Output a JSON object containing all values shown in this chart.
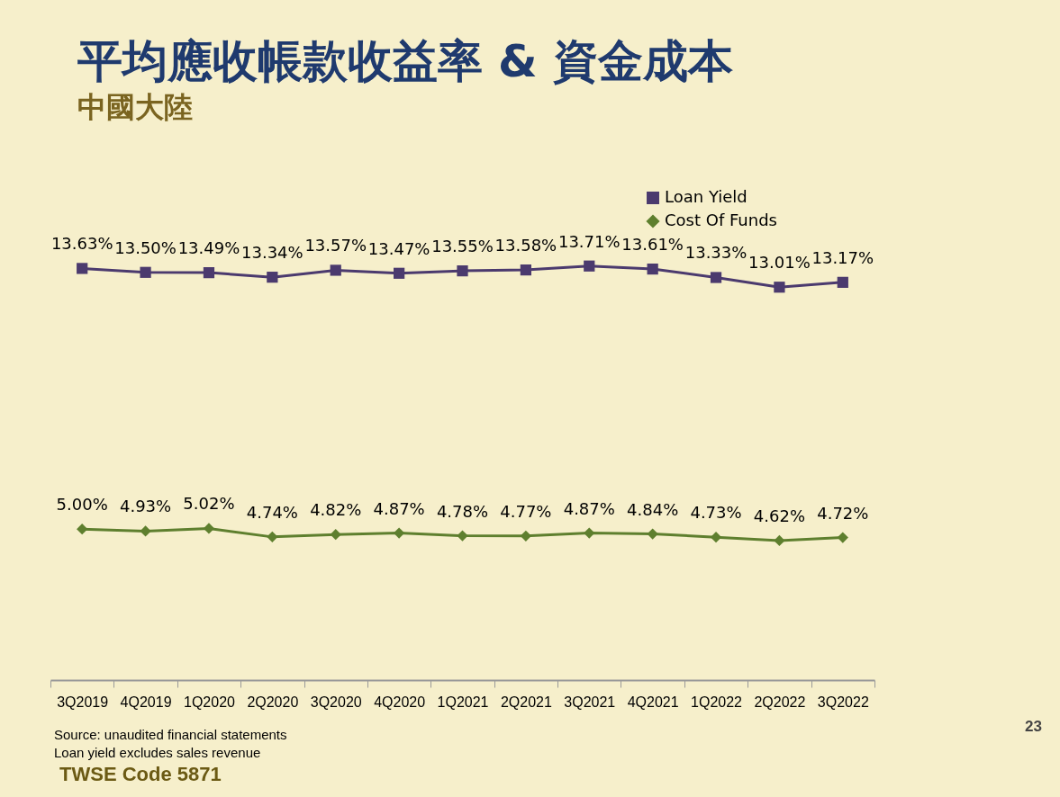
{
  "chart_data": {
    "type": "line",
    "title": "平均應收帳款收益率 & 資金成本",
    "subtitle": "中國大陸",
    "categories": [
      "3Q2019",
      "4Q2019",
      "1Q2020",
      "2Q2020",
      "3Q2020",
      "4Q2020",
      "1Q2021",
      "2Q2021",
      "3Q2021",
      "4Q2021",
      "1Q2022",
      "2Q2022",
      "3Q2022"
    ],
    "series": [
      {
        "name": "Loan Yield",
        "color": "#4b3a6e",
        "marker": "square",
        "values": [
          13.63,
          13.5,
          13.49,
          13.34,
          13.57,
          13.47,
          13.55,
          13.58,
          13.71,
          13.61,
          13.33,
          13.01,
          13.17
        ],
        "value_labels": [
          "13.63%",
          "13.50%",
          "13.49%",
          "13.34%",
          "13.57%",
          "13.47%",
          "13.55%",
          "13.58%",
          "13.71%",
          "13.61%",
          "13.33%",
          "13.01%",
          "13.17%"
        ]
      },
      {
        "name": "Cost Of Funds",
        "color": "#5e7f2e",
        "marker": "diamond",
        "values": [
          5.0,
          4.93,
          5.02,
          4.74,
          4.82,
          4.87,
          4.78,
          4.77,
          4.87,
          4.84,
          4.73,
          4.62,
          4.72
        ],
        "value_labels": [
          "5.00%",
          "4.93%",
          "5.02%",
          "4.74%",
          "4.82%",
          "4.87%",
          "4.78%",
          "4.77%",
          "4.87%",
          "4.84%",
          "4.73%",
          "4.62%",
          "4.72%"
        ]
      }
    ],
    "legend": "top right",
    "annotations": [
      "Source: unaudited financial statements",
      "Loan yield excludes sales revenue",
      "TWSE Code 5871",
      "23"
    ]
  }
}
